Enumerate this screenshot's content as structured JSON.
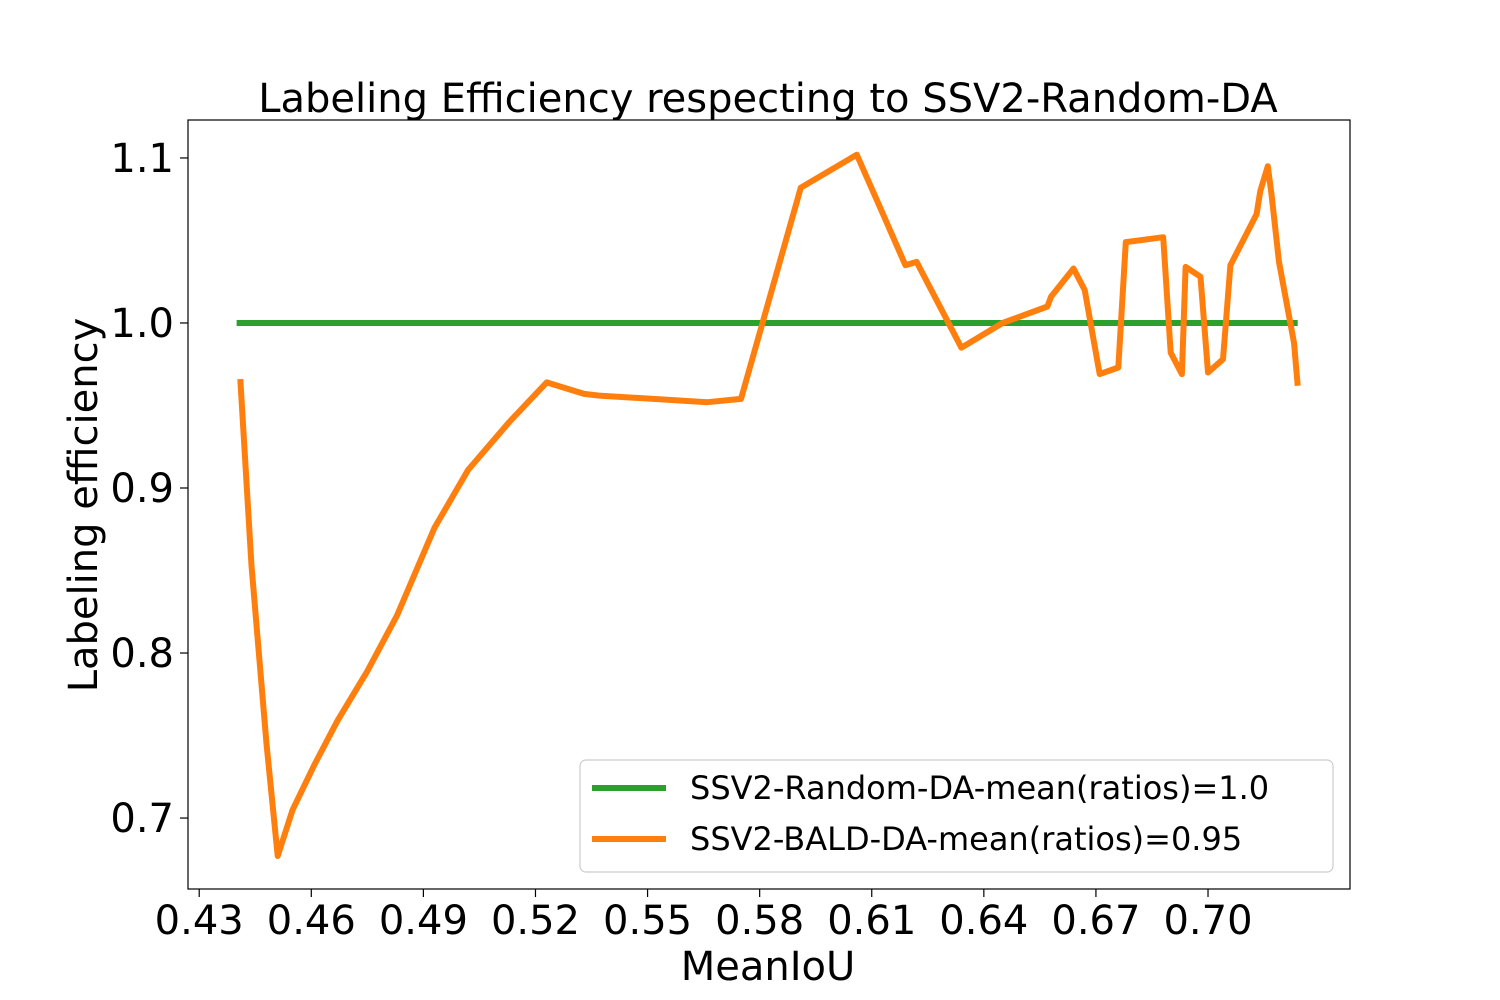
{
  "chart_data": {
    "type": "line",
    "title": "Labeling Efficiency respecting to SSV2-Random-DA",
    "xlabel": "MeanIoU",
    "ylabel": "Labeling efficiency",
    "xlim": [
      0.427,
      0.738
    ],
    "ylim": [
      0.657,
      1.123
    ],
    "xticks": [
      "0.43",
      "0.46",
      "0.49",
      "0.52",
      "0.55",
      "0.58",
      "0.61",
      "0.64",
      "0.67",
      "0.70"
    ],
    "xtick_values": [
      0.43,
      0.46,
      0.49,
      0.52,
      0.55,
      0.58,
      0.61,
      0.64,
      0.67,
      0.7
    ],
    "yticks": [
      "0.7",
      "0.8",
      "0.9",
      "1.0",
      "1.1"
    ],
    "ytick_values": [
      0.7,
      0.8,
      0.9,
      1.0,
      1.1
    ],
    "grid": false,
    "legend_position": "lower-right",
    "series": [
      {
        "name": "SSV2-Random-DA-mean(ratios)=1.0",
        "color": "#2ca02c",
        "x": [
          0.44,
          0.724
        ],
        "y": [
          1.0,
          1.0
        ]
      },
      {
        "name": "SSV2-BALD-DA-mean(ratios)=0.95",
        "color": "#ff7f0e",
        "x": [
          0.441,
          0.444,
          0.448,
          0.451,
          0.455,
          0.461,
          0.467,
          0.475,
          0.483,
          0.493,
          0.502,
          0.513,
          0.523,
          0.533,
          0.537,
          0.566,
          0.575,
          0.591,
          0.606,
          0.613,
          0.619,
          0.622,
          0.634,
          0.645,
          0.657,
          0.658,
          0.664,
          0.667,
          0.671,
          0.676,
          0.678,
          0.688,
          0.69,
          0.693,
          0.694,
          0.698,
          0.7,
          0.704,
          0.706,
          0.713,
          0.714,
          0.716,
          0.717,
          0.719,
          0.723,
          0.724
        ],
        "y": [
          0.966,
          0.853,
          0.745,
          0.677,
          0.705,
          0.733,
          0.759,
          0.789,
          0.823,
          0.876,
          0.911,
          0.94,
          0.964,
          0.957,
          0.956,
          0.952,
          0.954,
          1.082,
          1.102,
          1.066,
          1.035,
          1.037,
          0.985,
          1.0,
          1.01,
          1.016,
          1.033,
          1.02,
          0.969,
          0.973,
          1.049,
          1.052,
          0.982,
          0.969,
          1.034,
          1.028,
          0.97,
          0.978,
          1.035,
          1.066,
          1.08,
          1.095,
          1.078,
          1.037,
          0.988,
          0.962
        ]
      }
    ]
  }
}
